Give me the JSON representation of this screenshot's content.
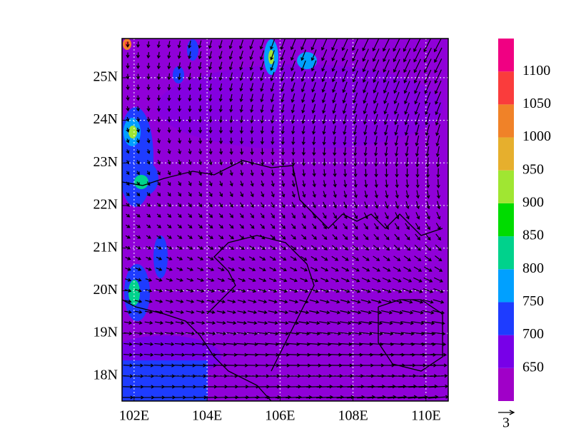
{
  "map": {
    "xlim": [
      101.67,
      110.61
    ],
    "ylim": [
      17.41,
      25.92
    ],
    "xticks": [
      {
        "value": 102,
        "label": "102E"
      },
      {
        "value": 104,
        "label": "104E"
      },
      {
        "value": 106,
        "label": "106E"
      },
      {
        "value": 108,
        "label": "108E"
      },
      {
        "value": 110,
        "label": "110E"
      }
    ],
    "yticks": [
      {
        "value": 18,
        "label": "18N"
      },
      {
        "value": 19,
        "label": "19N"
      },
      {
        "value": 20,
        "label": "20N"
      },
      {
        "value": 21,
        "label": "21N"
      },
      {
        "value": 22,
        "label": "22N"
      },
      {
        "value": 23,
        "label": "23N"
      },
      {
        "value": 24,
        "label": "24N"
      },
      {
        "value": 25,
        "label": "25N"
      }
    ],
    "colorbar": {
      "levels": [
        650,
        700,
        750,
        800,
        850,
        900,
        950,
        1000,
        1050,
        1100
      ],
      "colors": [
        "#a000c8",
        "#7800e8",
        "#1e3cff",
        "#00a0ff",
        "#00d28c",
        "#00dc00",
        "#a0e632",
        "#e6af2d",
        "#f08228",
        "#fa3c3c",
        "#f00082"
      ]
    },
    "vector_reference": 3
  }
}
